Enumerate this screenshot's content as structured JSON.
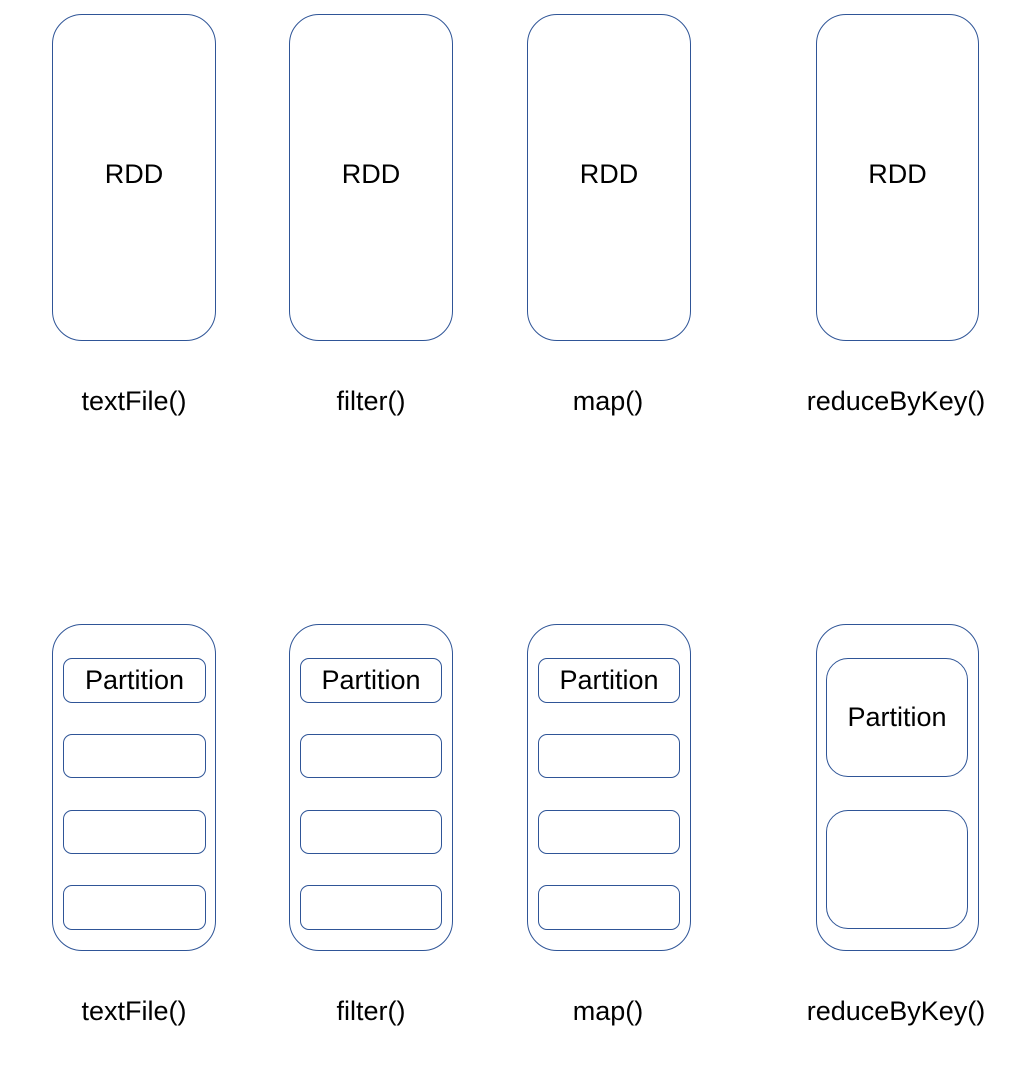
{
  "top_row": {
    "columns": [
      {
        "rdd_label": "RDD",
        "op_label": "textFile()"
      },
      {
        "rdd_label": "RDD",
        "op_label": "filter()"
      },
      {
        "rdd_label": "RDD",
        "op_label": "map()"
      },
      {
        "rdd_label": "RDD",
        "op_label": "reduceByKey()"
      }
    ]
  },
  "bottom_row": {
    "columns": [
      {
        "partitions": [
          "Partition",
          "",
          "",
          ""
        ],
        "op_label": "textFile()"
      },
      {
        "partitions": [
          "Partition",
          "",
          "",
          ""
        ],
        "op_label": "filter()"
      },
      {
        "partitions": [
          "Partition",
          "",
          "",
          ""
        ],
        "op_label": "map()"
      },
      {
        "partitions": [
          "Partition",
          ""
        ],
        "op_label": "reduceByKey()"
      }
    ]
  },
  "colors": {
    "outline": "#2F5597",
    "text": "#000000",
    "background": "#FFFFFF"
  }
}
